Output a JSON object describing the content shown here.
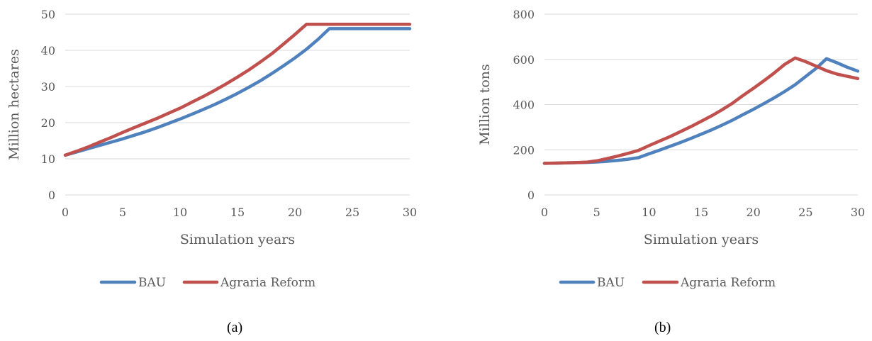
{
  "chart_data": [
    {
      "type": "line",
      "panel_label": "(a)",
      "xlabel": "Simulation years",
      "ylabel": "Million hectares",
      "xlim": [
        0,
        30
      ],
      "ylim": [
        0,
        50
      ],
      "xticks": [
        "0",
        "5",
        "10",
        "15",
        "20",
        "25",
        "30"
      ],
      "yticks": [
        "0",
        "10",
        "20",
        "30",
        "40",
        "50"
      ],
      "grid": true,
      "legend_position": "bottom",
      "series": [
        {
          "name": "BAU",
          "color": "#4F81BD",
          "x": [
            0,
            1,
            2,
            3,
            4,
            5,
            6,
            7,
            8,
            9,
            10,
            11,
            12,
            13,
            14,
            15,
            16,
            17,
            18,
            19,
            20,
            21,
            22,
            23,
            24,
            25,
            26,
            27,
            28,
            29,
            30
          ],
          "values": [
            11,
            11.9,
            12.8,
            13.7,
            14.6,
            15.5,
            16.5,
            17.5,
            18.6,
            19.8,
            21,
            22.3,
            23.6,
            25,
            26.5,
            28.1,
            29.8,
            31.6,
            33.6,
            35.7,
            37.9,
            40.3,
            43,
            46,
            46,
            46,
            46,
            46,
            46,
            46,
            46
          ]
        },
        {
          "name": "Agraria Reform",
          "color": "#C0504D",
          "x": [
            0,
            1,
            2,
            3,
            4,
            5,
            6,
            7,
            8,
            9,
            10,
            11,
            12,
            13,
            14,
            15,
            16,
            17,
            18,
            19,
            20,
            21,
            22,
            23,
            24,
            25,
            26,
            27,
            28,
            29,
            30
          ],
          "values": [
            11,
            12.1,
            13.3,
            14.6,
            15.9,
            17.3,
            18.6,
            19.9,
            21.2,
            22.6,
            24,
            25.6,
            27.2,
            28.9,
            30.7,
            32.6,
            34.6,
            36.8,
            39.1,
            41.7,
            44.4,
            47.2,
            47.2,
            47.2,
            47.2,
            47.2,
            47.2,
            47.2,
            47.2,
            47.2,
            47.2
          ]
        }
      ]
    },
    {
      "type": "line",
      "panel_label": "(b)",
      "xlabel": "Simulation years",
      "ylabel": "Million tons",
      "xlim": [
        0,
        30
      ],
      "ylim": [
        0,
        800
      ],
      "xticks": [
        "0",
        "5",
        "10",
        "15",
        "20",
        "25",
        "30"
      ],
      "yticks": [
        "0",
        "200",
        "400",
        "600",
        "800"
      ],
      "grid": true,
      "legend_position": "bottom",
      "series": [
        {
          "name": "BAU",
          "color": "#4F81BD",
          "x": [
            0,
            1,
            2,
            3,
            4,
            5,
            6,
            7,
            8,
            9,
            10,
            11,
            12,
            13,
            14,
            15,
            16,
            17,
            18,
            19,
            20,
            21,
            22,
            23,
            24,
            25,
            26,
            27,
            28,
            29,
            30
          ],
          "values": [
            140,
            141,
            142,
            143,
            144,
            146,
            149,
            153,
            158,
            165,
            182,
            198,
            215,
            232,
            250,
            269,
            288,
            309,
            331,
            355,
            379,
            404,
            430,
            458,
            488,
            524,
            560,
            603,
            585,
            565,
            548
          ]
        },
        {
          "name": "Agraria Reform",
          "color": "#C0504D",
          "x": [
            0,
            1,
            2,
            3,
            4,
            5,
            6,
            7,
            8,
            9,
            10,
            11,
            12,
            13,
            14,
            15,
            16,
            17,
            18,
            19,
            20,
            21,
            22,
            23,
            24,
            25,
            26,
            27,
            28,
            29,
            30
          ],
          "values": [
            140,
            141,
            142,
            143,
            145,
            151,
            161,
            172,
            184,
            197,
            218,
            238,
            258,
            280,
            302,
            326,
            350,
            377,
            406,
            440,
            472,
            505,
            540,
            578,
            606,
            590,
            570,
            550,
            535,
            525,
            515
          ]
        }
      ]
    }
  ]
}
